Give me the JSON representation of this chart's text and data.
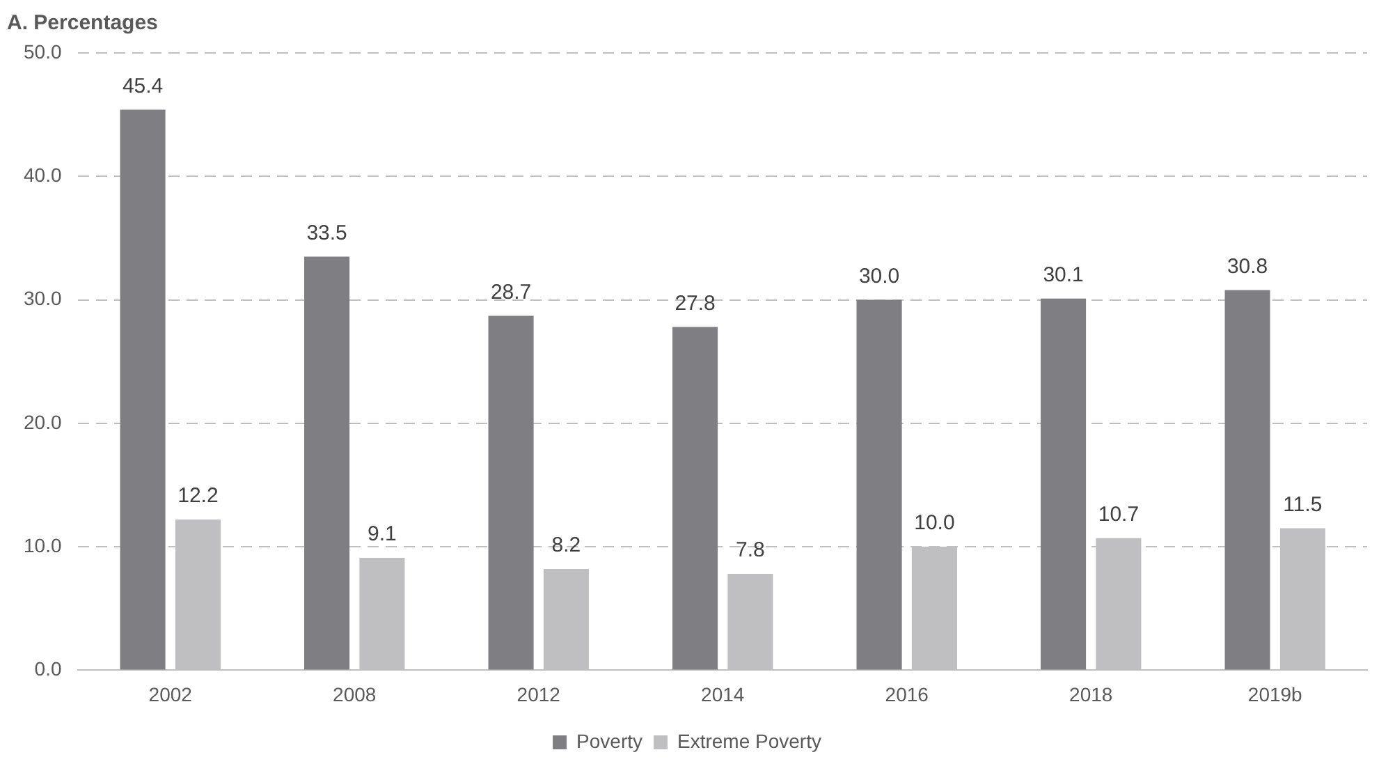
{
  "chart_data": {
    "type": "bar",
    "title": "A. Percentages",
    "categories": [
      "2002",
      "2008",
      "2012",
      "2014",
      "2016",
      "2018",
      "2019b"
    ],
    "series": [
      {
        "name": "Poverty",
        "color": "#7f7f83",
        "values": [
          45.4,
          33.5,
          28.7,
          27.8,
          30.0,
          30.1,
          30.8
        ],
        "value_labels": [
          "45.4",
          "33.5",
          "28.7",
          "27.8",
          "30.0",
          "30.1",
          "30.8"
        ]
      },
      {
        "name": "Extreme Poverty",
        "color": "#bfbfc1",
        "values": [
          12.2,
          9.1,
          8.2,
          7.8,
          10.0,
          10.7,
          11.5
        ],
        "value_labels": [
          "12.2",
          "9.1",
          "8.2",
          "7.8",
          "10.0",
          "10.7",
          "11.5"
        ]
      }
    ],
    "ylim": [
      0,
      50
    ],
    "yticks": [
      {
        "value": 0,
        "label": "0.0"
      },
      {
        "value": 10,
        "label": "10.0"
      },
      {
        "value": 20,
        "label": "20.0"
      },
      {
        "value": 30,
        "label": "30.0"
      },
      {
        "value": 40,
        "label": "40.0"
      },
      {
        "value": 50,
        "label": "50.0"
      }
    ],
    "grid": "y",
    "legend": "bottom"
  }
}
